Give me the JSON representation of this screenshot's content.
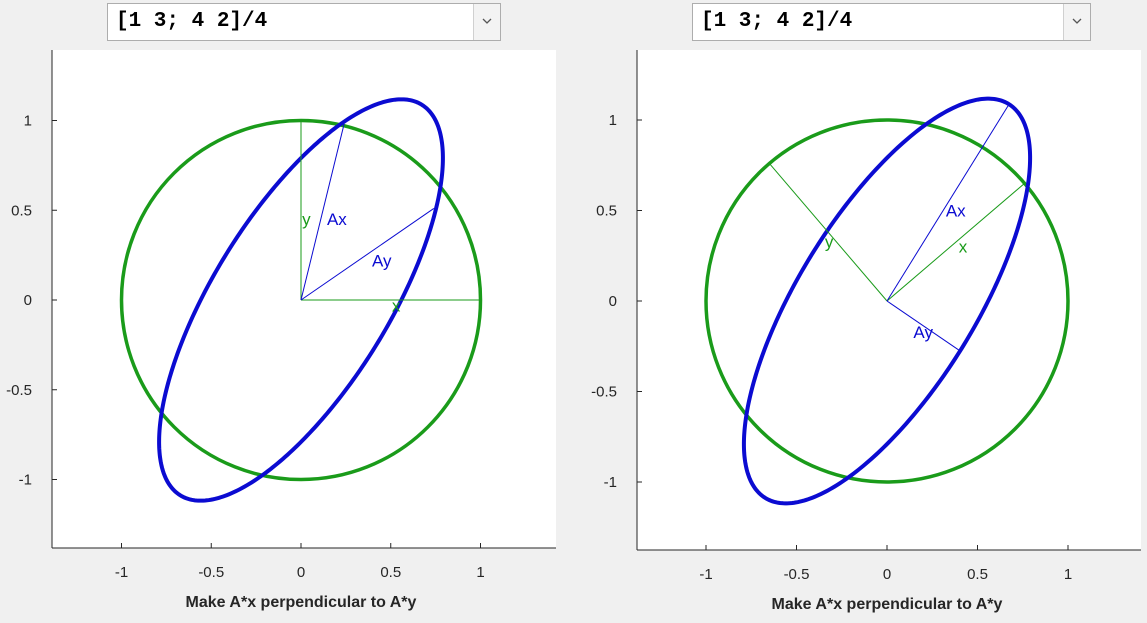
{
  "colors": {
    "circle": "#1a9b1a",
    "ellipse": "#0b0bd1",
    "axes_bg": "#ffffff",
    "text": "#262626"
  },
  "panels": [
    {
      "matrix_select": {
        "value": "[1 3; 4 2]/4",
        "icon": "chevron-down-icon"
      },
      "chart_data": {
        "type": "line",
        "xlabel": "Make A*x perpendicular to A*y",
        "xlim": [
          -1.4,
          1.4
        ],
        "ylim": [
          -1.38,
          1.38
        ],
        "xticks": [
          -1,
          -0.5,
          0,
          0.5,
          1
        ],
        "xtick_labels": [
          "-1",
          "-0.5",
          "0",
          "0.5",
          "1"
        ],
        "yticks": [
          1,
          0.5,
          0,
          -0.5,
          -1
        ],
        "ytick_labels": [
          "1",
          "0.5",
          "0",
          "-0.5",
          "-1"
        ],
        "series": [
          {
            "shape": "unit-circle"
          },
          {
            "shape": "ellipse",
            "matrix": [
              [
                0.25,
                0.75
              ],
              [
                1.0,
                0.5
              ]
            ]
          }
        ],
        "vectors": [
          {
            "label": "x",
            "color": "green",
            "to": [
              1.0,
              0.0
            ],
            "label_at": [
              0.53,
              -0.03
            ]
          },
          {
            "label": "y",
            "color": "green",
            "to": [
              0.0,
              1.0
            ],
            "label_at": [
              0.03,
              0.45
            ]
          },
          {
            "label": "Ax",
            "color": "blue",
            "to": [
              0.24,
              0.98
            ],
            "label_at": [
              0.2,
              0.45
            ]
          },
          {
            "label": "Ay",
            "color": "blue",
            "to": [
              0.74,
              0.51
            ],
            "label_at": [
              0.45,
              0.22
            ]
          }
        ],
        "grid": false
      }
    },
    {
      "matrix_select": {
        "value": "[1 3; 4 2]/4",
        "icon": "chevron-down-icon"
      },
      "chart_data": {
        "type": "line",
        "xlabel": "Make A*x perpendicular to A*y",
        "xlim": [
          -1.4,
          1.4
        ],
        "ylim": [
          -1.38,
          1.38
        ],
        "xticks": [
          -1,
          -0.5,
          0,
          0.5,
          1
        ],
        "xtick_labels": [
          "-1",
          "-0.5",
          "0",
          "0.5",
          "1"
        ],
        "yticks": [
          1,
          0.5,
          0,
          -0.5,
          -1
        ],
        "ytick_labels": [
          "1",
          "0.5",
          "0",
          "-0.5",
          "-1"
        ],
        "series": [
          {
            "shape": "unit-circle"
          },
          {
            "shape": "ellipse",
            "matrix": [
              [
                0.25,
                0.75
              ],
              [
                1.0,
                0.5
              ]
            ]
          }
        ],
        "vectors": [
          {
            "label": "x",
            "color": "green",
            "to": [
              0.76,
              0.65
            ],
            "label_at": [
              0.42,
              0.3
            ]
          },
          {
            "label": "y",
            "color": "green",
            "to": [
              -0.65,
              0.76
            ],
            "label_at": [
              -0.32,
              0.33
            ]
          },
          {
            "label": "Ax",
            "color": "blue",
            "to": [
              0.67,
              1.08
            ],
            "label_at": [
              0.38,
              0.5
            ]
          },
          {
            "label": "Ay",
            "color": "blue",
            "to": [
              0.41,
              -0.28
            ],
            "label_at": [
              0.2,
              -0.17
            ]
          }
        ],
        "grid": false
      }
    }
  ]
}
